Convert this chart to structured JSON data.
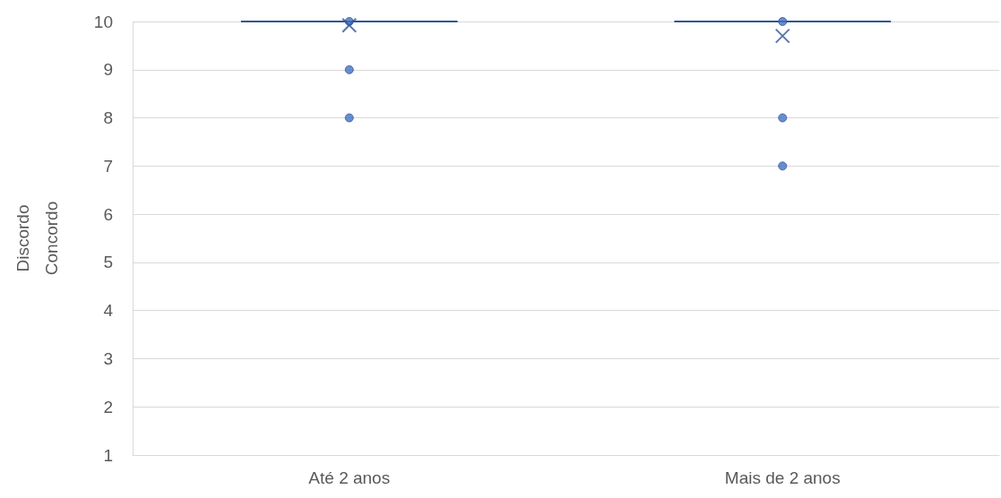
{
  "chart_data": {
    "type": "box",
    "ylabel": "Discordo\nConcordo",
    "categories": [
      "Até 2 anos",
      "Mais de 2 anos"
    ],
    "boxes": [
      {
        "low": 10,
        "q1": 10,
        "median": 10,
        "q3": 10,
        "high": 10,
        "mean": 9.92,
        "outliers": [
          10,
          9,
          8
        ]
      },
      {
        "low": 10,
        "q1": 10,
        "median": 10,
        "q3": 10,
        "high": 10,
        "mean": 9.7,
        "outliers": [
          10,
          8,
          7
        ]
      }
    ],
    "color": "#2f5597",
    "ylim": [
      1,
      10
    ],
    "yticks": [
      1,
      2,
      3,
      4,
      5,
      6,
      7,
      8,
      9,
      10
    ],
    "grid": "y",
    "legend": false
  }
}
